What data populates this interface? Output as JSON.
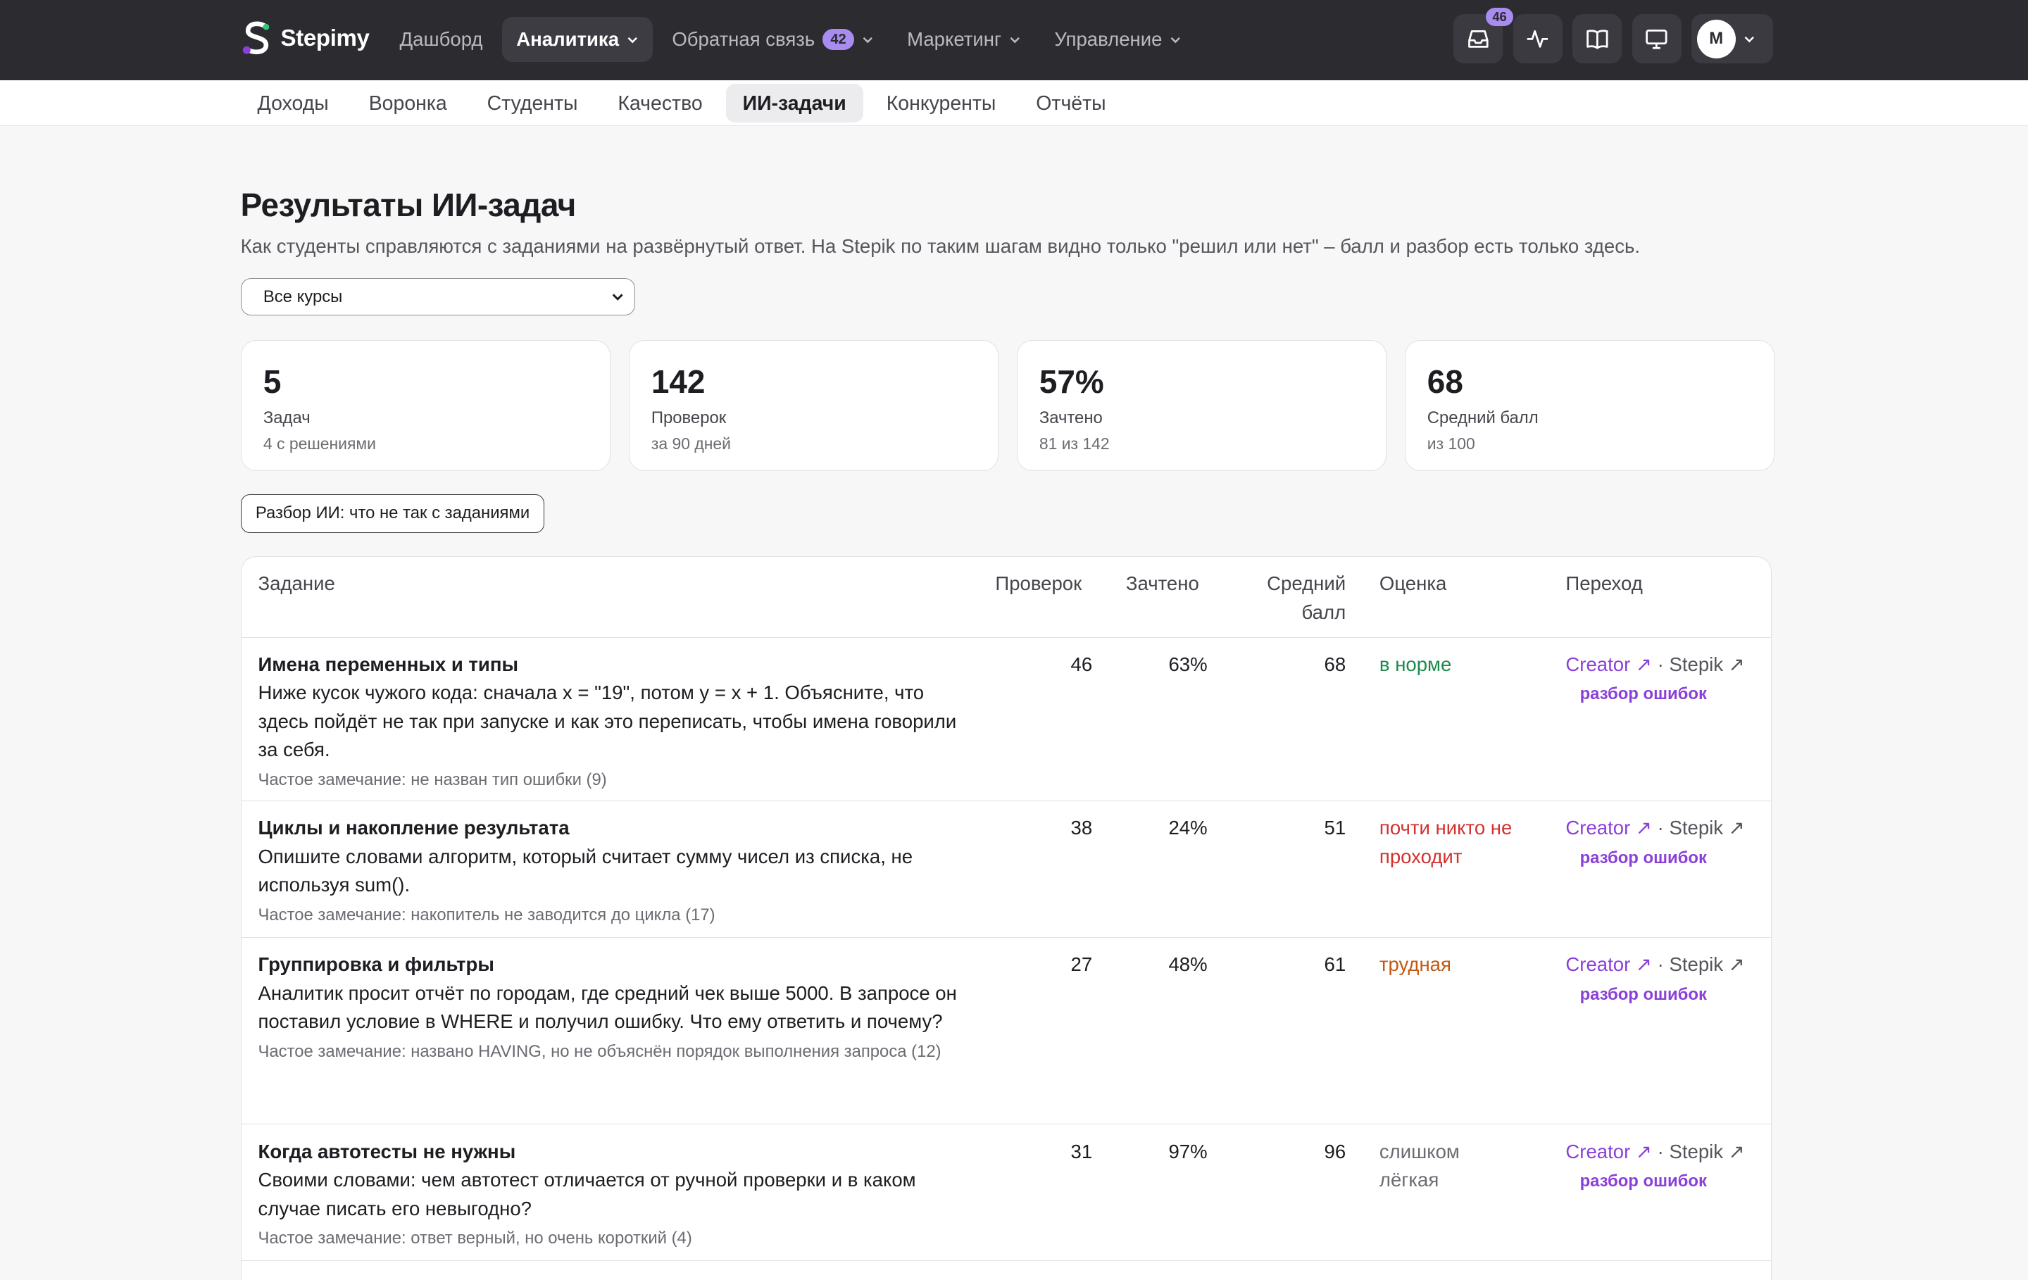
{
  "brand": {
    "name": "Stepimy",
    "accent": "#a98cf0",
    "topbar_bg": "#2b2b30"
  },
  "nav": {
    "items": [
      {
        "label": "Дашборд"
      },
      {
        "label": "Аналитика"
      },
      {
        "label": "Обратная связь",
        "badge": "42"
      },
      {
        "label": "Маркетинг"
      },
      {
        "label": "Управление"
      }
    ]
  },
  "toolbar": {
    "inbox_badge": "46",
    "avatar_letter": "M"
  },
  "subnav": {
    "items": [
      {
        "label": "Доходы"
      },
      {
        "label": "Воронка"
      },
      {
        "label": "Студенты"
      },
      {
        "label": "Качество"
      },
      {
        "label": "ИИ-задачи"
      },
      {
        "label": "Конкуренты"
      },
      {
        "label": "Отчёты"
      }
    ]
  },
  "page": {
    "title": "Результаты ИИ-задач",
    "subtitle": "Как студенты справляются с заданиями на развёрнутый ответ. На Stepik по таким шагам видно только \"решил или нет\" – балл и разбор есть только здесь.",
    "course_filter": "Все курсы",
    "ai_button": "Разбор ИИ: что не так с заданиями"
  },
  "stats": [
    {
      "value": "5",
      "label": "Задач",
      "sub": "4 с решениями"
    },
    {
      "value": "142",
      "label": "Проверок",
      "sub": "за 90 дней"
    },
    {
      "value": "57%",
      "label": "Зачтено",
      "sub": "81 из 142"
    },
    {
      "value": "68",
      "label": "Средний балл",
      "sub": "из 100"
    }
  ],
  "table": {
    "headers": {
      "task": "Задание",
      "checks": "Проверок",
      "passed": "Зачтено",
      "avg_line1": "Средний",
      "avg_line2": "балл",
      "rating": "Оценка",
      "links": "Переход"
    },
    "link_labels": {
      "creator": "Creator ↗",
      "sep": " · ",
      "stepik": "Stepik ↗",
      "errors": "разбор ошибок"
    },
    "rows": [
      {
        "title": "Имена переменных и типы",
        "desc": "Ниже кусок чужого кода: сначала x = \"19\", потом y = x + 1. Объясните, что здесь пойдёт не так при запуске и как это переписать, чтобы имена говорили за себя.",
        "note": "Частое замечание: не назван тип ошибки (9)",
        "checks": "46",
        "passed": "63%",
        "avg": "68",
        "rating": "в норме",
        "rating_kind": "ok"
      },
      {
        "title": "Циклы и накопление результата",
        "desc": "Опишите словами алгоритм, который считает сумму чисел из списка, не используя sum().",
        "note": "Частое замечание: накопитель не заводится до цикла (17)",
        "checks": "38",
        "passed": "24%",
        "avg": "51",
        "rating": "почти никто не проходит",
        "rating_kind": "bad"
      },
      {
        "title": "Группировка и фильтры",
        "desc": "Аналитик просит отчёт по городам, где средний чек выше 5000. В запросе он поставил условие в WHERE и получил ошибку. Что ему ответить и почему?",
        "note": "Частое замечание: названо HAVING, но не объяснён порядок выполнения запроса (12)",
        "checks": "27",
        "passed": "48%",
        "avg": "61",
        "rating": "трудная",
        "rating_kind": "hard"
      },
      {
        "title": "Когда автотесты не нужны",
        "desc": "Своими словами: чем автотест отличается от ручной проверки и в каком случае писать его невыгодно?",
        "note": "Частое замечание: ответ верный, но очень короткий (4)",
        "checks": "31",
        "passed": "97%",
        "avg": "96",
        "rating": "слишком лёгкая",
        "rating_kind": "easy"
      }
    ]
  }
}
